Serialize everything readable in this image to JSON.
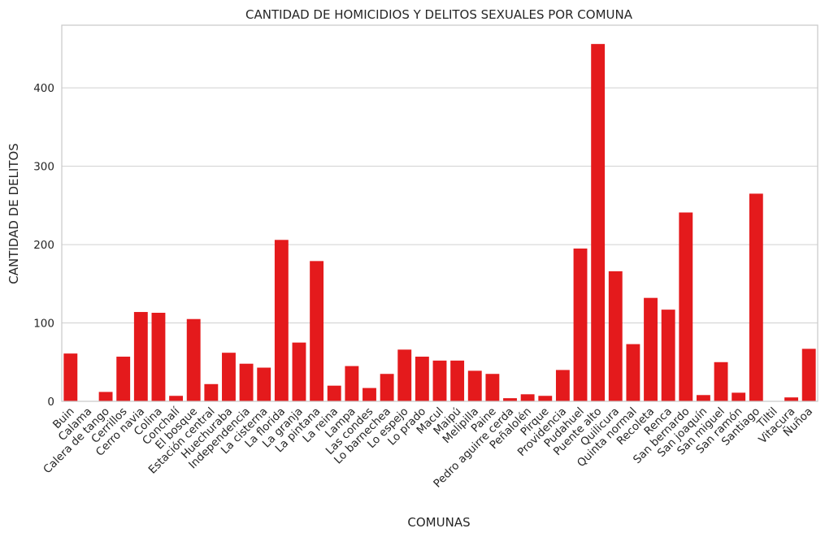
{
  "chart_data": {
    "type": "bar",
    "title": "CANTIDAD DE HOMICIDIOS Y DELITOS SEXUALES POR COMUNA",
    "xlabel": "COMUNAS",
    "ylabel": "CANTIDAD DE DELITOS",
    "ylim": [
      0,
      480
    ],
    "yticks": [
      0,
      100,
      200,
      300,
      400
    ],
    "grid": "horizontal",
    "bar_color": "#e41a1c",
    "categories": [
      "Buin",
      "Calama",
      "Calera de tango",
      "Cerrillos",
      "Cerro navia",
      "Colina",
      "Conchalí",
      "El bosque",
      "Estación central",
      "Huechuraba",
      "Independencia",
      "La cisterna",
      "La florida",
      "La granja",
      "La pintana",
      "La reina",
      "Lampa",
      "Las condes",
      "Lo barnechea",
      "Lo espejo",
      "Lo prado",
      "Macul",
      "Maipú",
      "Melipilla",
      "Paine",
      "Pedro  aguirre cerda",
      "Peñalolén",
      "Pirque",
      "Providencia",
      "Pudahuel",
      "Puente alto",
      "Quilicura",
      "Quinta normal",
      "Recoleta",
      "Renca",
      "San bernardo",
      "San joaquín",
      "San miguel",
      "San ramón",
      "Santiago",
      "Tiltil",
      "Vitacura",
      "Ñuñoa"
    ],
    "values": [
      61,
      0,
      12,
      57,
      114,
      113,
      7,
      105,
      22,
      62,
      48,
      43,
      206,
      75,
      179,
      20,
      45,
      17,
      35,
      66,
      57,
      52,
      52,
      39,
      35,
      4,
      9,
      7,
      40,
      195,
      456,
      166,
      73,
      132,
      117,
      241,
      8,
      50,
      11,
      265,
      0,
      5,
      67
    ]
  }
}
